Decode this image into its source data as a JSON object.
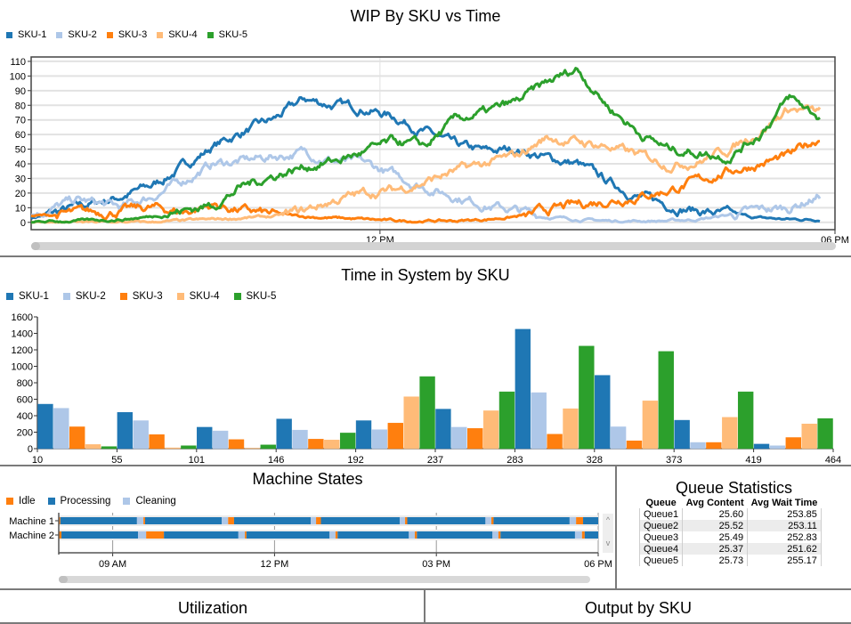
{
  "colors": {
    "SKU-1": "#1f77b4",
    "SKU-2": "#aec7e8",
    "SKU-3": "#ff7f0e",
    "SKU-4": "#ffbb78",
    "SKU-5": "#2ca02c",
    "Idle": "#ff7f0e",
    "Processing": "#1f77b4",
    "Cleaning": "#aec7e8"
  },
  "chart_data": [
    {
      "id": "wip",
      "type": "line",
      "title": "WIP By SKU vs Time",
      "xlabel": "",
      "ylabel": "",
      "x_domain_hours": [
        7.4,
        18.0
      ],
      "x_ticks": [
        {
          "hour": 12,
          "label": "12 PM"
        },
        {
          "hour": 18,
          "label": "06 PM"
        }
      ],
      "ylim": [
        -5,
        113
      ],
      "y_ticks": [
        0,
        10,
        20,
        30,
        40,
        50,
        60,
        70,
        80,
        90,
        100,
        110
      ],
      "grid": true,
      "legend": "top-left",
      "series": [
        {
          "name": "SKU-1",
          "x_hours": [
            7.4,
            8.0,
            8.6,
            9.0,
            9.4,
            9.8,
            10.2,
            10.6,
            11.0,
            11.4,
            11.8,
            12.2,
            12.6,
            13.0,
            13.4,
            13.8,
            14.2,
            14.6,
            15.0,
            15.4,
            15.8,
            16.2,
            16.6,
            17.0,
            17.4,
            17.8
          ],
          "values": [
            3,
            10,
            18,
            25,
            38,
            52,
            62,
            70,
            84,
            80,
            78,
            72,
            62,
            52,
            48,
            50,
            44,
            40,
            28,
            18,
            12,
            8,
            5,
            3,
            2,
            2
          ]
        },
        {
          "name": "SKU-2",
          "x_hours": [
            7.4,
            8.0,
            8.6,
            9.0,
            9.4,
            9.8,
            10.2,
            10.6,
            11.0,
            11.4,
            11.8,
            12.2,
            12.6,
            13.0,
            13.4,
            13.8,
            14.2,
            14.6,
            15.0,
            15.4,
            15.8,
            16.2,
            16.6,
            17.0,
            17.4,
            17.8
          ],
          "values": [
            5,
            15,
            10,
            18,
            28,
            40,
            42,
            45,
            48,
            42,
            40,
            32,
            24,
            18,
            12,
            8,
            4,
            2,
            1,
            1,
            1,
            2,
            5,
            8,
            10,
            18
          ]
        },
        {
          "name": "SKU-3",
          "x_hours": [
            7.4,
            8.0,
            8.6,
            9.0,
            9.4,
            9.8,
            10.2,
            10.6,
            11.0,
            11.4,
            11.8,
            12.2,
            12.6,
            13.0,
            13.4,
            13.8,
            14.2,
            14.6,
            15.0,
            15.4,
            15.8,
            16.2,
            16.6,
            17.0,
            17.4,
            17.8
          ],
          "values": [
            4,
            6,
            8,
            10,
            7,
            12,
            8,
            5,
            4,
            3,
            2,
            1,
            1,
            1,
            2,
            4,
            8,
            12,
            15,
            18,
            22,
            28,
            35,
            40,
            45,
            58
          ]
        },
        {
          "name": "SKU-4",
          "x_hours": [
            7.4,
            8.0,
            8.6,
            9.0,
            9.4,
            9.8,
            10.2,
            10.6,
            11.0,
            11.4,
            11.8,
            12.2,
            12.6,
            13.0,
            13.4,
            13.8,
            14.2,
            14.6,
            15.0,
            15.4,
            15.8,
            16.2,
            16.6,
            17.0,
            17.4,
            17.8
          ],
          "values": [
            0,
            0,
            0,
            0,
            1,
            2,
            3,
            4,
            8,
            15,
            20,
            22,
            28,
            35,
            40,
            45,
            58,
            55,
            52,
            46,
            40,
            42,
            50,
            62,
            78,
            75
          ]
        },
        {
          "name": "SKU-5",
          "x_hours": [
            7.4,
            8.0,
            8.6,
            9.0,
            9.4,
            9.8,
            10.2,
            10.6,
            11.0,
            11.4,
            11.8,
            12.2,
            12.6,
            13.0,
            13.4,
            13.8,
            14.2,
            14.6,
            15.0,
            15.4,
            15.8,
            16.2,
            16.6,
            17.0,
            17.4,
            17.8
          ],
          "values": [
            0,
            1,
            2,
            4,
            8,
            12,
            25,
            32,
            38,
            42,
            48,
            55,
            52,
            70,
            75,
            82,
            95,
            105,
            80,
            62,
            50,
            48,
            45,
            60,
            85,
            72
          ]
        }
      ]
    },
    {
      "id": "tis",
      "type": "bar",
      "title": "Time in System by SKU",
      "xlabel": "",
      "ylabel": "",
      "categories": [
        "10",
        "55",
        "101",
        "146",
        "192",
        "237",
        "283",
        "328",
        "373",
        "419"
      ],
      "x_tick_labels": [
        "10",
        "55",
        "101",
        "146",
        "192",
        "237",
        "283",
        "328",
        "373",
        "419",
        "464"
      ],
      "ylim": [
        0,
        1600
      ],
      "y_ticks": [
        0,
        200,
        400,
        600,
        800,
        1000,
        1200,
        1400,
        1600
      ],
      "grid": false,
      "legend": "top-left",
      "series": [
        {
          "name": "SKU-1",
          "values": [
            540,
            440,
            260,
            360,
            340,
            480,
            1450,
            890,
            345,
            55
          ]
        },
        {
          "name": "SKU-2",
          "values": [
            490,
            340,
            215,
            225,
            230,
            260,
            680,
            265,
            75,
            35
          ]
        },
        {
          "name": "SKU-3",
          "values": [
            265,
            170,
            110,
            115,
            310,
            245,
            175,
            95,
            75,
            135
          ]
        },
        {
          "name": "SKU-4",
          "values": [
            50,
            10,
            5,
            105,
            630,
            460,
            485,
            580,
            380,
            300
          ]
        },
        {
          "name": "SKU-5",
          "values": [
            25,
            35,
            45,
            190,
            875,
            690,
            1245,
            1180,
            690,
            365
          ]
        }
      ]
    },
    {
      "id": "machine-states",
      "type": "timeline",
      "title": "Machine States",
      "legend": "top-left",
      "states": [
        "Idle",
        "Processing",
        "Cleaning"
      ],
      "x_domain_hours": [
        8.0,
        18.0
      ],
      "x_ticks": [
        {
          "hour": 9,
          "label": "09 AM"
        },
        {
          "hour": 12,
          "label": "12 PM"
        },
        {
          "hour": 15,
          "label": "03 PM"
        },
        {
          "hour": 18,
          "label": "06 PM"
        }
      ],
      "machines": [
        {
          "name": "Machine 1",
          "segments": [
            [
              "Idle",
              8.0,
              8.03
            ],
            [
              "Processing",
              8.03,
              9.45
            ],
            [
              "Cleaning",
              9.45,
              9.57
            ],
            [
              "Idle",
              9.57,
              9.6
            ],
            [
              "Processing",
              9.6,
              11.02
            ],
            [
              "Cleaning",
              11.02,
              11.14
            ],
            [
              "Idle",
              11.14,
              11.25
            ],
            [
              "Processing",
              11.25,
              12.67
            ],
            [
              "Cleaning",
              12.67,
              12.77
            ],
            [
              "Idle",
              12.77,
              12.86
            ],
            [
              "Processing",
              12.86,
              14.32
            ],
            [
              "Cleaning",
              14.32,
              14.42
            ],
            [
              "Idle",
              14.42,
              14.46
            ],
            [
              "Processing",
              14.46,
              15.91
            ],
            [
              "Cleaning",
              15.91,
              16.02
            ],
            [
              "Idle",
              16.02,
              16.06
            ],
            [
              "Processing",
              16.06,
              17.47
            ],
            [
              "Cleaning",
              17.47,
              17.59
            ],
            [
              "Idle",
              17.59,
              17.72
            ],
            [
              "Processing",
              17.72,
              18.0
            ]
          ]
        },
        {
          "name": "Machine 2",
          "segments": [
            [
              "Idle",
              8.0,
              8.05
            ],
            [
              "Processing",
              8.05,
              9.47
            ],
            [
              "Cleaning",
              9.47,
              9.62
            ],
            [
              "Idle",
              9.62,
              9.95
            ],
            [
              "Processing",
              9.95,
              11.33
            ],
            [
              "Cleaning",
              11.33,
              11.45
            ],
            [
              "Idle",
              11.45,
              11.48
            ],
            [
              "Processing",
              11.48,
              13.02
            ],
            [
              "Cleaning",
              13.02,
              13.13
            ],
            [
              "Idle",
              13.13,
              13.17
            ],
            [
              "Processing",
              13.17,
              14.49
            ],
            [
              "Cleaning",
              14.49,
              14.6
            ],
            [
              "Idle",
              14.6,
              14.64
            ],
            [
              "Processing",
              14.64,
              16.04
            ],
            [
              "Cleaning",
              16.04,
              16.15
            ],
            [
              "Idle",
              16.15,
              16.19
            ],
            [
              "Processing",
              16.19,
              17.57
            ],
            [
              "Cleaning",
              17.57,
              17.7
            ],
            [
              "Idle",
              17.7,
              17.75
            ],
            [
              "Processing",
              17.75,
              18.0
            ]
          ]
        }
      ]
    },
    {
      "id": "queue-statistics",
      "type": "table",
      "title": "Queue Statistics",
      "columns": [
        "Queue",
        "Avg Content",
        "Avg Wait Time"
      ],
      "rows": [
        [
          "Queue1",
          "25.60",
          "253.85"
        ],
        [
          "Queue2",
          "25.52",
          "253.11"
        ],
        [
          "Queue3",
          "25.49",
          "252.83"
        ],
        [
          "Queue4",
          "25.37",
          "251.62"
        ],
        [
          "Queue5",
          "25.73",
          "255.17"
        ]
      ]
    }
  ],
  "bottom_panels": {
    "utilization_title": "Utilization",
    "output_title": "Output by SKU"
  },
  "scroll": {
    "up": "^",
    "down": "v"
  }
}
